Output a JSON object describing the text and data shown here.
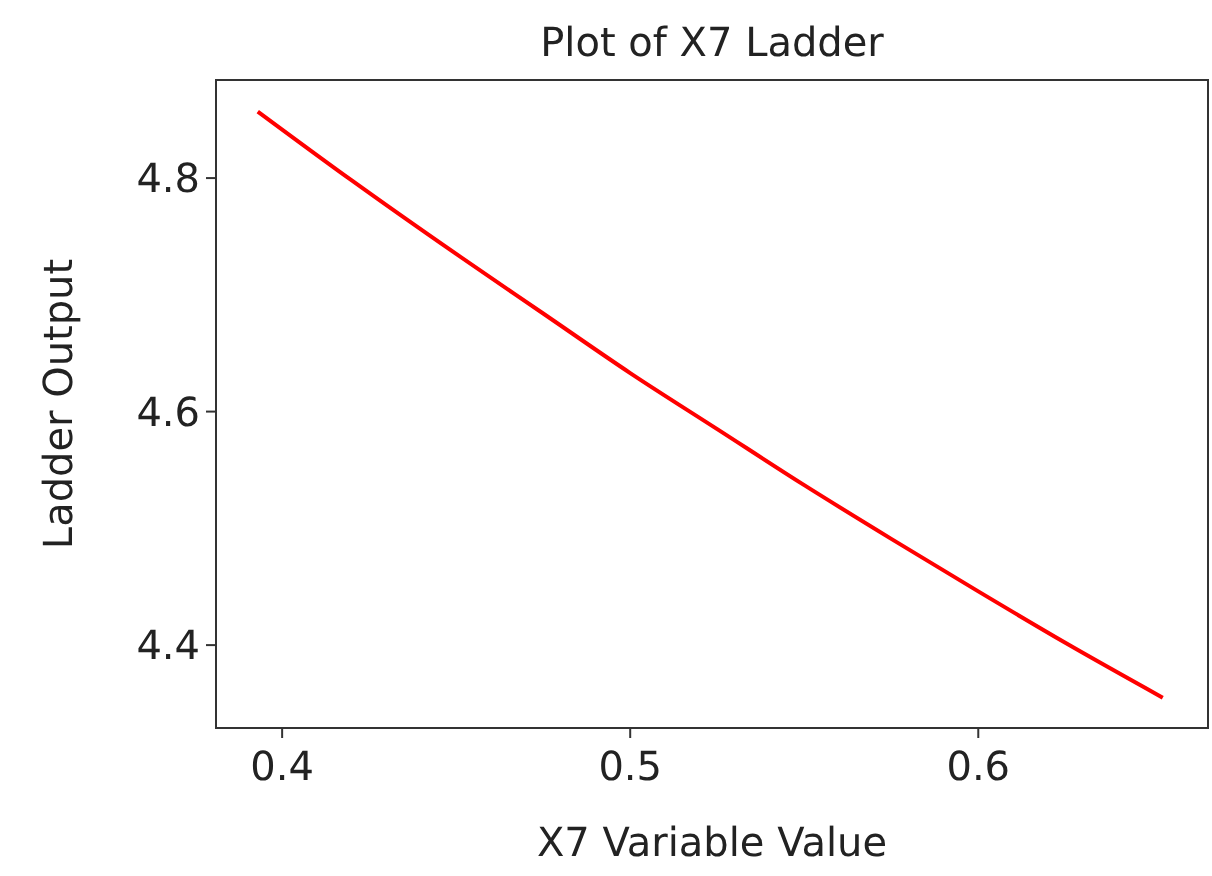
{
  "chart_data": {
    "type": "line",
    "title": "Plot of X7 Ladder",
    "xlabel": "X7 Variable Value",
    "ylabel": "Ladder Output",
    "x": [
      0.393,
      0.42,
      0.45,
      0.475,
      0.5,
      0.525,
      0.55,
      0.575,
      0.6,
      0.625,
      0.653
    ],
    "series": [
      {
        "color": "#ff0000",
        "values": [
          4.857,
          4.798,
          4.735,
          4.684,
          4.633,
          4.585,
          4.537,
          4.491,
          4.446,
          4.402,
          4.355
        ]
      }
    ],
    "xlim": [
      0.381,
      0.666
    ],
    "xticks": [
      0.4,
      0.5,
      0.6
    ],
    "ylim": [
      4.329,
      4.884
    ],
    "yticks": [
      4.4,
      4.6,
      4.8
    ],
    "marker": "none",
    "line_style": "solid"
  }
}
